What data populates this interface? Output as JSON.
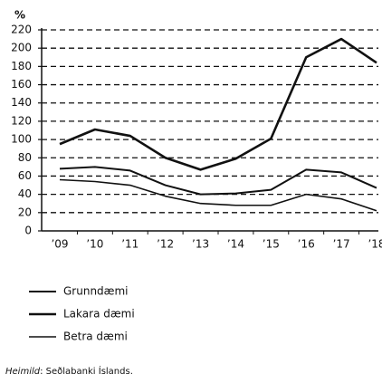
{
  "chart_data": {
    "type": "line",
    "y_label": "%",
    "categories": [
      "’09",
      "’10",
      "’11",
      "’12",
      "’13",
      "’14",
      "’15",
      "’16",
      "’17",
      "’18"
    ],
    "series": [
      {
        "name": "Grunndæmi",
        "color": "#111111",
        "line_width": 2,
        "values": [
          68,
          70,
          66,
          50,
          40,
          41,
          45,
          67,
          64,
          47
        ]
      },
      {
        "name": "Lakara dæmi",
        "color": "#111111",
        "line_width": 2.6,
        "values": [
          95,
          111,
          104,
          80,
          67,
          79,
          101,
          190,
          210,
          184
        ]
      },
      {
        "name": "Betra dæmi",
        "color": "#111111",
        "line_width": 1.6,
        "values": [
          56,
          54,
          50,
          38,
          30,
          28,
          28,
          40,
          35,
          22
        ]
      }
    ],
    "ylim": [
      0,
      220
    ],
    "yticks": [
      0,
      20,
      40,
      60,
      80,
      100,
      120,
      140,
      160,
      180,
      200,
      220
    ],
    "grid": true,
    "source_label": "Heimild",
    "source_text": ": Seðlabanki Íslands."
  }
}
